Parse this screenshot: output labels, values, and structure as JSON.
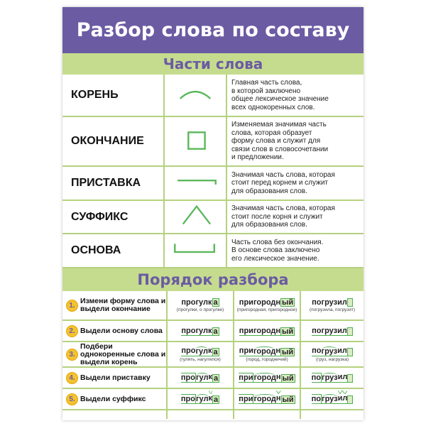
{
  "title": "Разбор слова по составу",
  "parts_heading": "Части слова",
  "parts": [
    {
      "name": "КОРЕНЬ",
      "symbol": "arc",
      "desc": "Главная часть слова,\nв которой заключено\nобщее лексическое значение\nвсех однокоренных слов."
    },
    {
      "name": "ОКОНЧАНИЕ",
      "symbol": "square",
      "desc": "Изменяемая значимая часть\nслова, которая образует\nформу слова и служит для\nсвязи слов в словосочетании\nи предложении."
    },
    {
      "name": "ПРИСТАВКА",
      "symbol": "corner",
      "desc": "Значимая часть слова, которая\nстоит перед корнем и служит\nдля образования слов."
    },
    {
      "name": "СУФФИКС",
      "symbol": "caret",
      "desc": "Значимая часть слова, которая\nстоит после корня и служит\nдля образования слов."
    },
    {
      "name": "ОСНОВА",
      "symbol": "bracket",
      "desc": "Часть слова без окончания.\nВ основе слова заключено\nего лексическое значение."
    }
  ],
  "order_heading": "Порядок разбора",
  "steps": [
    {
      "num": "1.",
      "label": "Измени форму слова и выдели окончание",
      "notes": [
        "(прогулки, о прогулке)",
        "(пригородная, пригородное)",
        "(погрузила, погрузят)"
      ]
    },
    {
      "num": "2.",
      "label": "Выдели основу слова",
      "notes": [
        "",
        "",
        ""
      ]
    },
    {
      "num": "3.",
      "label": "Подбери однокоренные слова и выдели корень",
      "notes": [
        "(гулять, нагулялся)",
        "(город, городничий)",
        "(груз, нагрузка)"
      ]
    },
    {
      "num": "4.",
      "label": "Выдели приставку",
      "notes": [
        "",
        "",
        ""
      ]
    },
    {
      "num": "5.",
      "label": "Выдели суффикс",
      "notes": [
        "",
        "",
        ""
      ]
    }
  ],
  "words": [
    {
      "prefix": "про",
      "root": "гул",
      "suffixes": [
        "к"
      ],
      "ending": "а"
    },
    {
      "prefix": "при",
      "root": "город",
      "suffixes": [
        "н"
      ],
      "ending": "ый"
    },
    {
      "prefix": "по",
      "root": "груз",
      "suffixes": [
        "и",
        "л"
      ],
      "ending": ""
    }
  ],
  "colors": {
    "purple": "#6b5ba3",
    "green_band": "#c5dc8e",
    "mark_green": "#4caf50",
    "badge": "#f5c230"
  }
}
